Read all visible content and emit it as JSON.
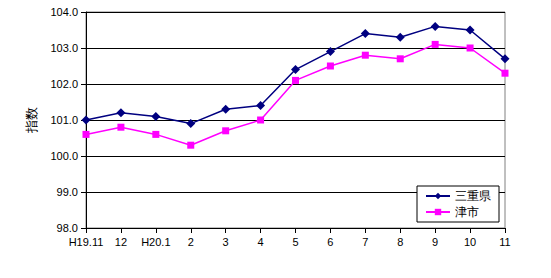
{
  "chart_data": {
    "type": "line",
    "y_label": "指数",
    "categories": [
      "H19.11",
      "12",
      "H20.1",
      "2",
      "3",
      "4",
      "5",
      "6",
      "7",
      "8",
      "9",
      "10",
      "11"
    ],
    "series": [
      {
        "name": "三重県",
        "color": "#000080",
        "marker": "diamond",
        "line_style": "solid",
        "values": [
          101.0,
          101.2,
          101.1,
          100.9,
          101.3,
          101.4,
          102.4,
          102.9,
          103.4,
          103.3,
          103.6,
          103.5,
          102.7
        ]
      },
      {
        "name": "津市",
        "color": "#ff00ff",
        "marker": "square",
        "line_style": "solid",
        "values": [
          100.6,
          100.8,
          100.6,
          100.3,
          100.7,
          101.0,
          102.1,
          102.5,
          102.8,
          102.7,
          103.1,
          103.0,
          102.3
        ]
      }
    ],
    "ylim": [
      98,
      104
    ],
    "yticks": [
      {
        "value": 98,
        "label": "98.0"
      },
      {
        "value": 99,
        "label": "99.0"
      },
      {
        "value": 100,
        "label": "100.0"
      },
      {
        "value": 101,
        "label": "101.0"
      },
      {
        "value": 102,
        "label": "102.0"
      },
      {
        "value": 103,
        "label": "103.0"
      },
      {
        "value": 104,
        "label": "104.0"
      }
    ],
    "grid": true,
    "legend": "lower right"
  }
}
